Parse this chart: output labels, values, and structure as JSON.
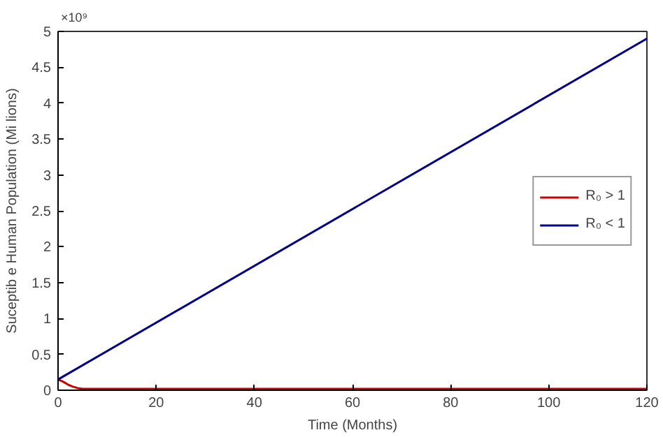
{
  "chart_data": {
    "type": "line",
    "xlabel": "Time (Months)",
    "ylabel": "Suceptib e Human Population (Mi lions)",
    "annotations": [
      "×10⁹"
    ],
    "series": [
      {
        "name": "R₀ > 1",
        "color": "#cc0000",
        "x": [
          0,
          1,
          2,
          3,
          4,
          5,
          6,
          10,
          120
        ],
        "values": [
          0.15,
          0.12,
          0.08,
          0.05,
          0.03,
          0.02,
          0.02,
          0.02,
          0.02
        ]
      },
      {
        "name": "R₀ < 1",
        "color": "#00008b",
        "x": [
          0,
          120
        ],
        "values": [
          0.15,
          4.9
        ]
      }
    ],
    "xlim": [
      0,
      120
    ],
    "xticks": [
      0,
      20,
      40,
      60,
      80,
      100,
      120
    ],
    "ylim": [
      0,
      5
    ],
    "yticks": [
      0,
      0.5,
      1,
      1.5,
      2,
      2.5,
      3,
      3.5,
      4,
      4.5,
      5
    ],
    "grid": false,
    "legend": "right"
  }
}
